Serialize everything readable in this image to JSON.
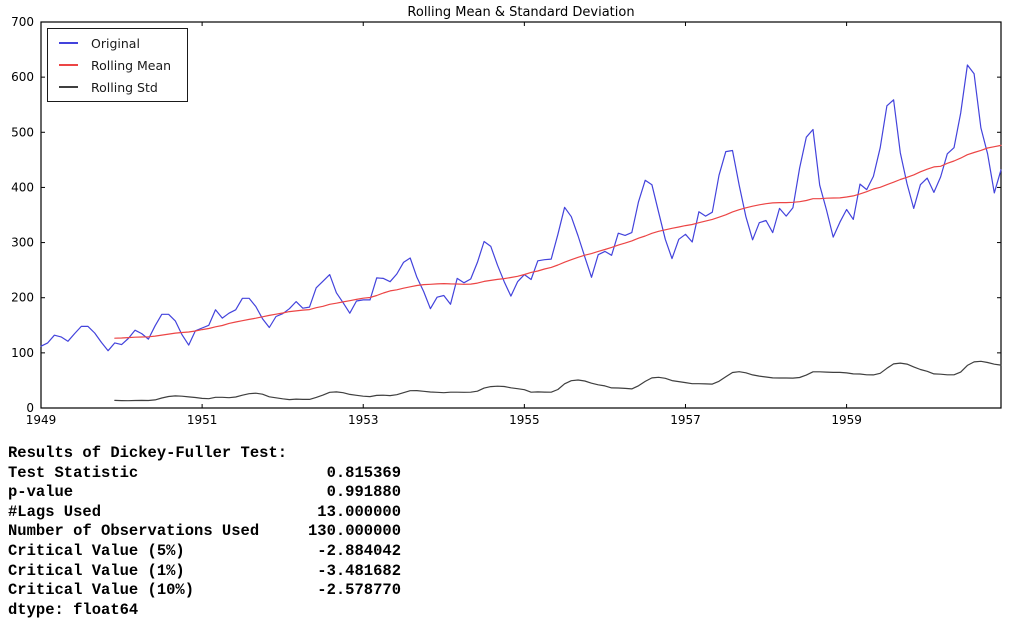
{
  "chart_data": {
    "type": "line",
    "title": "Rolling Mean & Standard Deviation",
    "x_start_year": 1949,
    "x_unit": "month",
    "xtick_years": [
      1949,
      1951,
      1953,
      1955,
      1957,
      1959
    ],
    "ytick_values": [
      0,
      100,
      200,
      300,
      400,
      500,
      600,
      700
    ],
    "ylim": [
      0,
      700
    ],
    "grid": false,
    "legend_position": "upper left",
    "rolling_window": 12,
    "series": [
      {
        "name": "Original",
        "color": "#4343DC",
        "values": [
          112,
          118,
          132,
          129,
          121,
          135,
          148,
          148,
          136,
          119,
          104,
          118,
          115,
          126,
          141,
          135,
          125,
          149,
          170,
          170,
          158,
          133,
          114,
          140,
          145,
          150,
          178,
          163,
          172,
          178,
          199,
          199,
          184,
          162,
          146,
          166,
          171,
          180,
          193,
          181,
          183,
          218,
          230,
          242,
          209,
          191,
          172,
          194,
          196,
          196,
          236,
          235,
          229,
          243,
          264,
          272,
          237,
          211,
          180,
          201,
          204,
          188,
          235,
          227,
          234,
          264,
          302,
          293,
          259,
          229,
          203,
          229,
          242,
          233,
          267,
          269,
          270,
          315,
          364,
          347,
          312,
          274,
          237,
          278,
          284,
          277,
          317,
          313,
          318,
          374,
          413,
          405,
          355,
          306,
          271,
          306,
          315,
          301,
          356,
          348,
          355,
          422,
          465,
          467,
          404,
          347,
          305,
          336,
          340,
          318,
          362,
          348,
          363,
          435,
          491,
          505,
          404,
          359,
          310,
          337,
          360,
          342,
          406,
          396,
          420,
          472,
          548,
          559,
          463,
          407,
          362,
          405,
          417,
          391,
          419,
          461,
          472,
          535,
          622,
          606,
          508,
          461,
          390,
          432
        ]
      },
      {
        "name": "Rolling Mean",
        "color": "#EC4545",
        "derived": "rolling_mean",
        "window": 12,
        "derived_from": "Original"
      },
      {
        "name": "Rolling Std",
        "color": "#3F3F3F",
        "derived": "rolling_std",
        "window": 12,
        "derived_from": "Original"
      }
    ]
  },
  "dickey_fuller": {
    "header": "Results of Dickey-Fuller Test:",
    "rows": [
      {
        "label": "Test Statistic",
        "value": "0.815369"
      },
      {
        "label": "p-value",
        "value": "0.991880"
      },
      {
        "label": "#Lags Used",
        "value": "13.000000"
      },
      {
        "label": "Number of Observations Used",
        "value": "130.000000"
      },
      {
        "label": "Critical Value (5%)",
        "value": "-2.884042"
      },
      {
        "label": "Critical Value (1%)",
        "value": "-3.481682"
      },
      {
        "label": "Critical Value (10%)",
        "value": "-2.578770"
      }
    ],
    "footer": "dtype: float64"
  }
}
